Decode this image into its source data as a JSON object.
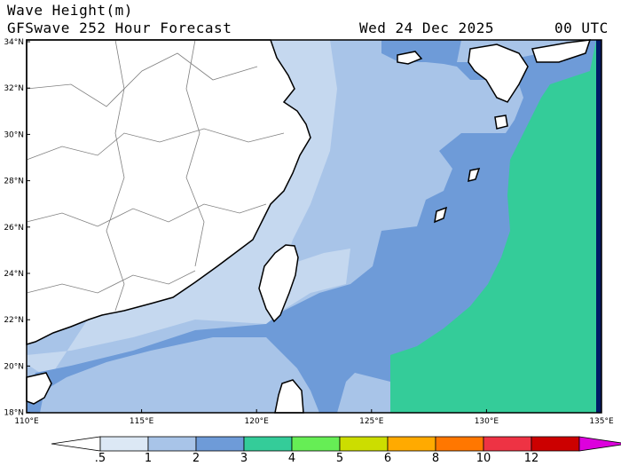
{
  "header": {
    "title_line1": "Wave Height(m)",
    "title_line2": "GFSwave 252 Hour Forecast",
    "date": "Wed 24 Dec 2025",
    "time": "00 UTC"
  },
  "map": {
    "lat_labels": [
      "34°N",
      "32°N",
      "30°N",
      "28°N",
      "26°N",
      "24°N",
      "22°N",
      "20°N",
      "18°N"
    ],
    "lon_labels": [
      "110°E",
      "115°E",
      "120°E",
      "125°E",
      "130°E",
      "135°E"
    ],
    "colors": {
      "land": "#ffffff",
      "band_0_5_1": "#aec8e6",
      "band_1_2": "#a8c4e8",
      "band_2_3": "#6e9bd8",
      "band_3_4": "#34cc99",
      "coast": "#000000",
      "border": "#808080"
    }
  },
  "colorbar": {
    "labels": [
      ".5",
      "1",
      "2",
      "3",
      "4",
      "5",
      "6",
      "8",
      "10",
      "12"
    ],
    "colors": [
      "#dce8f5",
      "#a8c4e8",
      "#6e9bd8",
      "#34cc99",
      "#66ee55",
      "#ccdd00",
      "#ffaa00",
      "#ff7700",
      "#ee3344",
      "#cc0000"
    ],
    "end_color": "#dd00dd"
  }
}
